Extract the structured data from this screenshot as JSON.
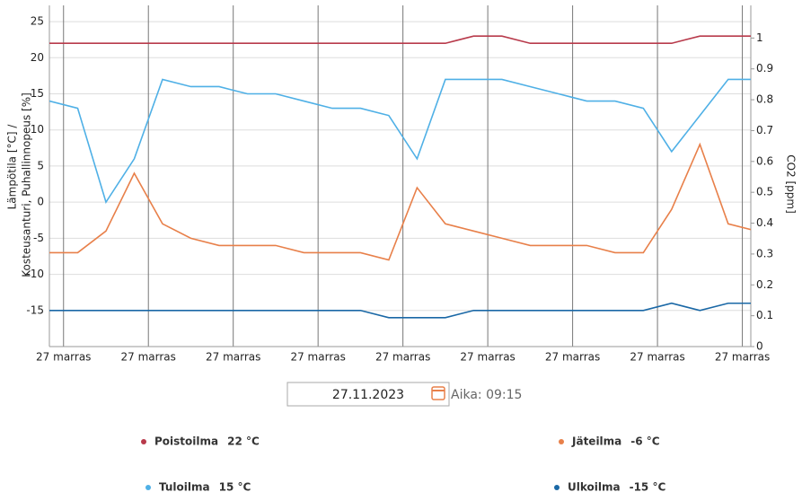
{
  "chart_data": {
    "type": "line",
    "y_axis_label": [
      "Lämpötila [°C] /",
      "Kosteusanturi, Puhallinnopeus [%]"
    ],
    "y2_axis_label": "CO2 [ppm]",
    "x": [
      0,
      1,
      2,
      3,
      4,
      5,
      6,
      7,
      8,
      9,
      10,
      11,
      12,
      13,
      14,
      15,
      16,
      17,
      18,
      19,
      20,
      21,
      22,
      23,
      24,
      25
    ],
    "xlim": [
      0,
      24.8
    ],
    "xticks": [
      {
        "value": 0.5,
        "label": "27 marras"
      },
      {
        "value": 3.5,
        "label": "27 marras"
      },
      {
        "value": 6.5,
        "label": "27 marras"
      },
      {
        "value": 9.5,
        "label": "27 marras"
      },
      {
        "value": 12.5,
        "label": "27 marras"
      },
      {
        "value": 15.5,
        "label": "27 marras"
      },
      {
        "value": 18.5,
        "label": "27 marras"
      },
      {
        "value": 21.5,
        "label": "27 marras"
      },
      {
        "value": 24.5,
        "label": "27 marras"
      }
    ],
    "ylim": [
      -20,
      27
    ],
    "yticks": [
      -15,
      -10,
      -5,
      0,
      5,
      10,
      15,
      20,
      25
    ],
    "y2lim": [
      0,
      1.1
    ],
    "y2ticks": [
      0,
      0.1,
      0.2,
      0.3,
      0.4,
      0.5,
      0.6,
      0.7,
      0.8,
      0.9,
      1
    ],
    "grid": true,
    "series": [
      {
        "name": "Poistoilma",
        "reading": "22 °C",
        "color": "#b83a4b",
        "values": [
          22,
          22,
          22,
          22,
          22,
          22,
          22,
          22,
          22,
          22,
          22,
          22,
          22,
          22,
          22,
          23,
          23,
          22,
          22,
          22,
          22,
          22,
          22,
          23,
          23,
          23
        ]
      },
      {
        "name": "Jäteilma",
        "reading": "-6 °C",
        "color": "#e8804a",
        "values": [
          -7,
          -7,
          -4,
          4,
          -3,
          -5,
          -6,
          -6,
          -6,
          -7,
          -7,
          -7,
          -8,
          2,
          -3,
          -4,
          -5,
          -6,
          -6,
          -6,
          -7,
          -7,
          -1,
          8,
          -3,
          -4
        ]
      },
      {
        "name": "Tuloilma",
        "reading": "15 °C",
        "color": "#4fb0e6",
        "values": [
          14,
          13,
          0,
          6,
          17,
          16,
          16,
          15,
          15,
          14,
          13,
          13,
          12,
          6,
          17,
          17,
          17,
          16,
          15,
          14,
          14,
          13,
          7,
          12,
          17,
          17
        ]
      },
      {
        "name": "Ulkoilma",
        "reading": "-15 °C",
        "color": "#1a68a6",
        "values": [
          -15,
          -15,
          -15,
          -15,
          -15,
          -15,
          -15,
          -15,
          -15,
          -15,
          -15,
          -15,
          -16,
          -16,
          -16,
          -15,
          -15,
          -15,
          -15,
          -15,
          -15,
          -15,
          -14,
          -15,
          -14,
          -14
        ]
      }
    ]
  },
  "date_picker": {
    "date": "27.11.2023",
    "time": "Aika: 09:15"
  }
}
